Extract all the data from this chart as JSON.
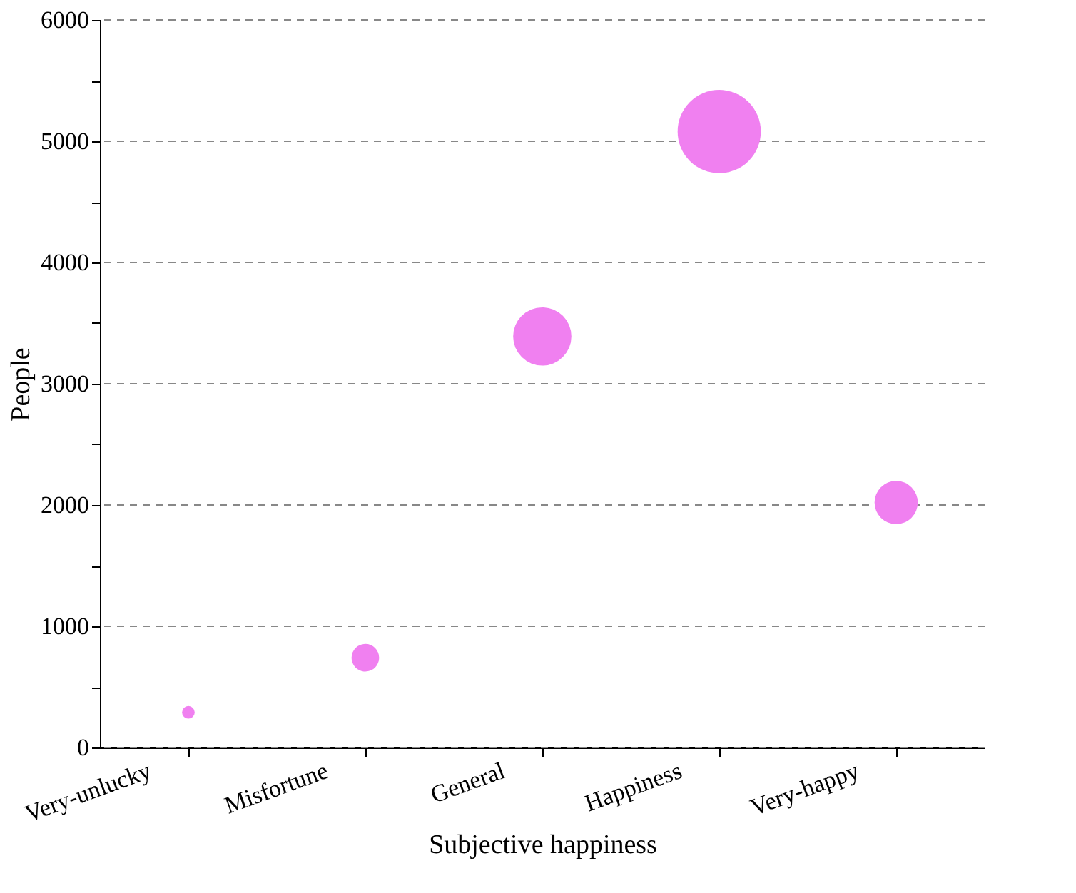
{
  "chart_data": {
    "type": "bubble",
    "xlabel": "Subjective happiness",
    "ylabel": "People",
    "categories": [
      "Very-unlucky",
      "Misfortune",
      "General",
      "Happiness",
      "Very-happy"
    ],
    "series": [
      {
        "color": "#f080f0",
        "values": [
          290,
          740,
          3390,
          5080,
          2020
        ],
        "sizes": [
          0.023,
          0.11,
          0.49,
          1,
          0.27
        ]
      }
    ],
    "ylim": [
      0,
      6000
    ],
    "yticks": [
      0,
      {
        "value": 500,
        "label": null
      },
      1000,
      {
        "value": 1500,
        "label": null
      },
      2000,
      {
        "value": 2500,
        "label": null
      },
      3000,
      {
        "value": 3500,
        "label": null
      },
      4000,
      {
        "value": 4500,
        "label": null
      },
      5000,
      {
        "value": 5500,
        "label": null
      },
      6000
    ],
    "grid": "y"
  }
}
